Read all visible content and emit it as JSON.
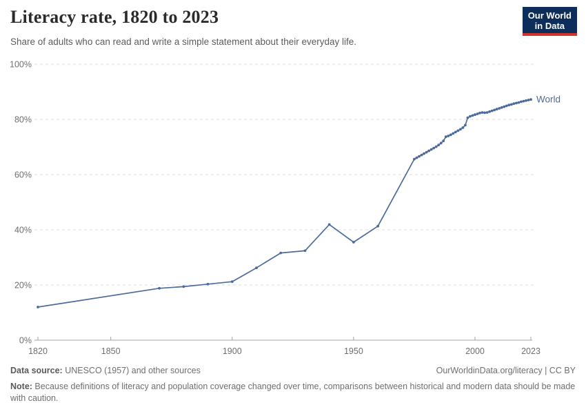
{
  "header": {
    "title": "Literacy rate, 1820 to 2023",
    "subtitle": "Share of adults who can read and write a simple statement about their everyday life.",
    "logo_line1": "Our World",
    "logo_line2": "in Data"
  },
  "chart_data": {
    "type": "line",
    "title": "Literacy rate, 1820 to 2023",
    "xlabel": "",
    "ylabel": "",
    "xlim": [
      1820,
      2023
    ],
    "ylim": [
      0,
      100
    ],
    "x_ticks": [
      "1820",
      "1850",
      "1900",
      "1950",
      "2000",
      "2023"
    ],
    "x_tick_values": [
      1820,
      1850,
      1900,
      1950,
      2000,
      2023
    ],
    "y_ticks": [
      "0%",
      "20%",
      "40%",
      "60%",
      "80%",
      "100%"
    ],
    "y_tick_values": [
      0,
      20,
      40,
      60,
      80,
      100
    ],
    "grid": "horizontal-dashed",
    "legend_position": "end-of-line-label",
    "series": [
      {
        "name": "World",
        "color": "#4c6a9c",
        "points": [
          [
            1820,
            12.0
          ],
          [
            1870,
            18.8
          ],
          [
            1880,
            19.4
          ],
          [
            1890,
            20.3
          ],
          [
            1900,
            21.2
          ],
          [
            1910,
            26.2
          ],
          [
            1920,
            31.6
          ],
          [
            1930,
            32.4
          ],
          [
            1940,
            41.9
          ],
          [
            1950,
            35.5
          ],
          [
            1960,
            41.3
          ],
          [
            1975,
            65.6
          ],
          [
            1976,
            66.1
          ],
          [
            1977,
            66.6
          ],
          [
            1978,
            67.1
          ],
          [
            1979,
            67.6
          ],
          [
            1980,
            68.1
          ],
          [
            1981,
            68.6
          ],
          [
            1982,
            69.1
          ],
          [
            1983,
            69.6
          ],
          [
            1984,
            70.1
          ],
          [
            1985,
            70.7
          ],
          [
            1986,
            71.4
          ],
          [
            1987,
            72.2
          ],
          [
            1988,
            73.7
          ],
          [
            1989,
            74.0
          ],
          [
            1990,
            74.4
          ],
          [
            1991,
            74.9
          ],
          [
            1992,
            75.4
          ],
          [
            1993,
            75.9
          ],
          [
            1994,
            76.4
          ],
          [
            1995,
            77.0
          ],
          [
            1996,
            77.9
          ],
          [
            1997,
            80.6
          ],
          [
            1998,
            81.1
          ],
          [
            1999,
            81.4
          ],
          [
            2000,
            81.7
          ],
          [
            2001,
            82.0
          ],
          [
            2002,
            82.3
          ],
          [
            2003,
            82.5
          ],
          [
            2004,
            82.4
          ],
          [
            2005,
            82.5
          ],
          [
            2006,
            82.8
          ],
          [
            2007,
            83.1
          ],
          [
            2008,
            83.4
          ],
          [
            2009,
            83.7
          ],
          [
            2010,
            84.0
          ],
          [
            2011,
            84.3
          ],
          [
            2012,
            84.6
          ],
          [
            2013,
            84.9
          ],
          [
            2014,
            85.2
          ],
          [
            2015,
            85.4
          ],
          [
            2016,
            85.7
          ],
          [
            2017,
            85.9
          ],
          [
            2018,
            86.1
          ],
          [
            2019,
            86.4
          ],
          [
            2020,
            86.6
          ],
          [
            2021,
            86.8
          ],
          [
            2022,
            87.0
          ],
          [
            2023,
            87.2
          ]
        ]
      }
    ]
  },
  "footer": {
    "source_label": "Data source:",
    "source_text": " UNESCO (1957) and other sources",
    "link_url": "OurWorldinData.org/literacy",
    "link_divider": " | ",
    "license": "CC BY",
    "note_label": "Note:",
    "note_text": " Because definitions of literacy and population coverage changed over time, comparisons between historical and modern data should be made with caution."
  },
  "colors": {
    "line": "#4c6a9c",
    "title_text": "#2b2b2b",
    "subtitle_text": "#5b5b5b",
    "axis_text": "#6e6e6e",
    "gridline": "#dedede",
    "axis_line": "#a3a3a3",
    "logo_bg": "#0d2e5a",
    "logo_accent": "#d0342c"
  }
}
